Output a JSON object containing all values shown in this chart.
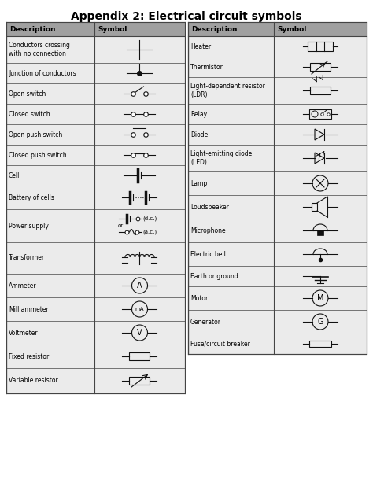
{
  "title": "Appendix 2: Electrical circuit symbols",
  "bg_color": "#ebebeb",
  "header_bg": "#a0a0a0",
  "border_color": "#444444",
  "left_rows": [
    "Conductors crossing\nwith no connection",
    "Junction of conductors",
    "Open switch",
    "Closed switch",
    "Open push switch",
    "Closed push switch",
    "Cell",
    "Battery of cells",
    "Power supply",
    "Transformer",
    "Ammeter",
    "Milliammeter",
    "Voltmeter",
    "Fixed resistor",
    "Variable resistor"
  ],
  "right_rows": [
    "Heater",
    "Thermistor",
    "Light-dependent resistor\n(LDR)",
    "Relay",
    "Diode",
    "Light-emitting diode\n(LED)",
    "Lamp",
    "Loudspeaker",
    "Microphone",
    "Electric bell",
    "Earth or ground",
    "Motor",
    "Generator",
    "Fuse/circuit breaker"
  ]
}
